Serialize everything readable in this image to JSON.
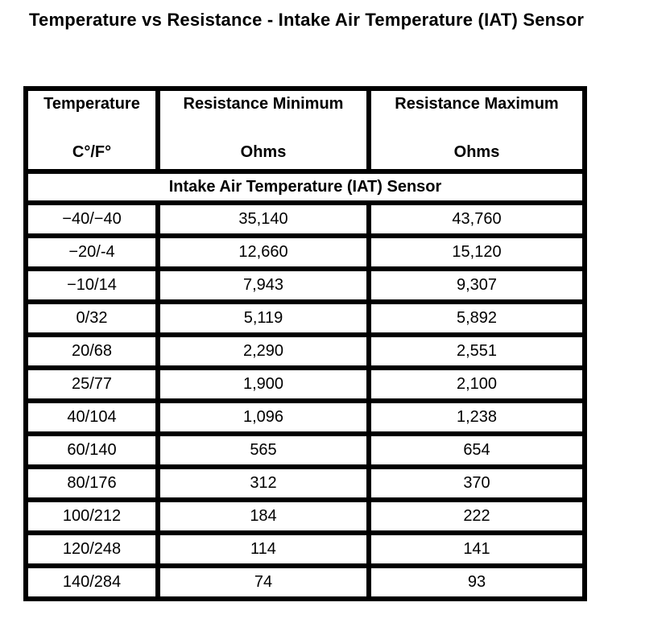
{
  "title": "Temperature vs Resistance - Intake Air Temperature (IAT) Sensor",
  "colors": {
    "background": "#ffffff",
    "text": "#000000",
    "table_border": "#000000"
  },
  "table": {
    "columns": [
      {
        "label": "Temperature",
        "units": "C°/F°"
      },
      {
        "label": "Resistance Minimum",
        "units": "Ohms"
      },
      {
        "label": "Resistance Maximum",
        "units": "Ohms"
      }
    ],
    "section_header": "Intake Air Temperature (IAT) Sensor",
    "rows": [
      {
        "temperature": "−40/−40",
        "resistance_min": "35,140",
        "resistance_max": "43,760"
      },
      {
        "temperature": "−20/-4",
        "resistance_min": "12,660",
        "resistance_max": "15,120"
      },
      {
        "temperature": "−10/14",
        "resistance_min": "7,943",
        "resistance_max": "9,307"
      },
      {
        "temperature": "0/32",
        "resistance_min": "5,119",
        "resistance_max": "5,892"
      },
      {
        "temperature": "20/68",
        "resistance_min": "2,290",
        "resistance_max": "2,551"
      },
      {
        "temperature": "25/77",
        "resistance_min": "1,900",
        "resistance_max": "2,100"
      },
      {
        "temperature": "40/104",
        "resistance_min": "1,096",
        "resistance_max": "1,238"
      },
      {
        "temperature": "60/140",
        "resistance_min": "565",
        "resistance_max": "654"
      },
      {
        "temperature": "80/176",
        "resistance_min": "312",
        "resistance_max": "370"
      },
      {
        "temperature": "100/212",
        "resistance_min": "184",
        "resistance_max": "222"
      },
      {
        "temperature": "120/248",
        "resistance_min": "114",
        "resistance_max": "141"
      },
      {
        "temperature": "140/284",
        "resistance_min": "74",
        "resistance_max": "93"
      }
    ]
  }
}
